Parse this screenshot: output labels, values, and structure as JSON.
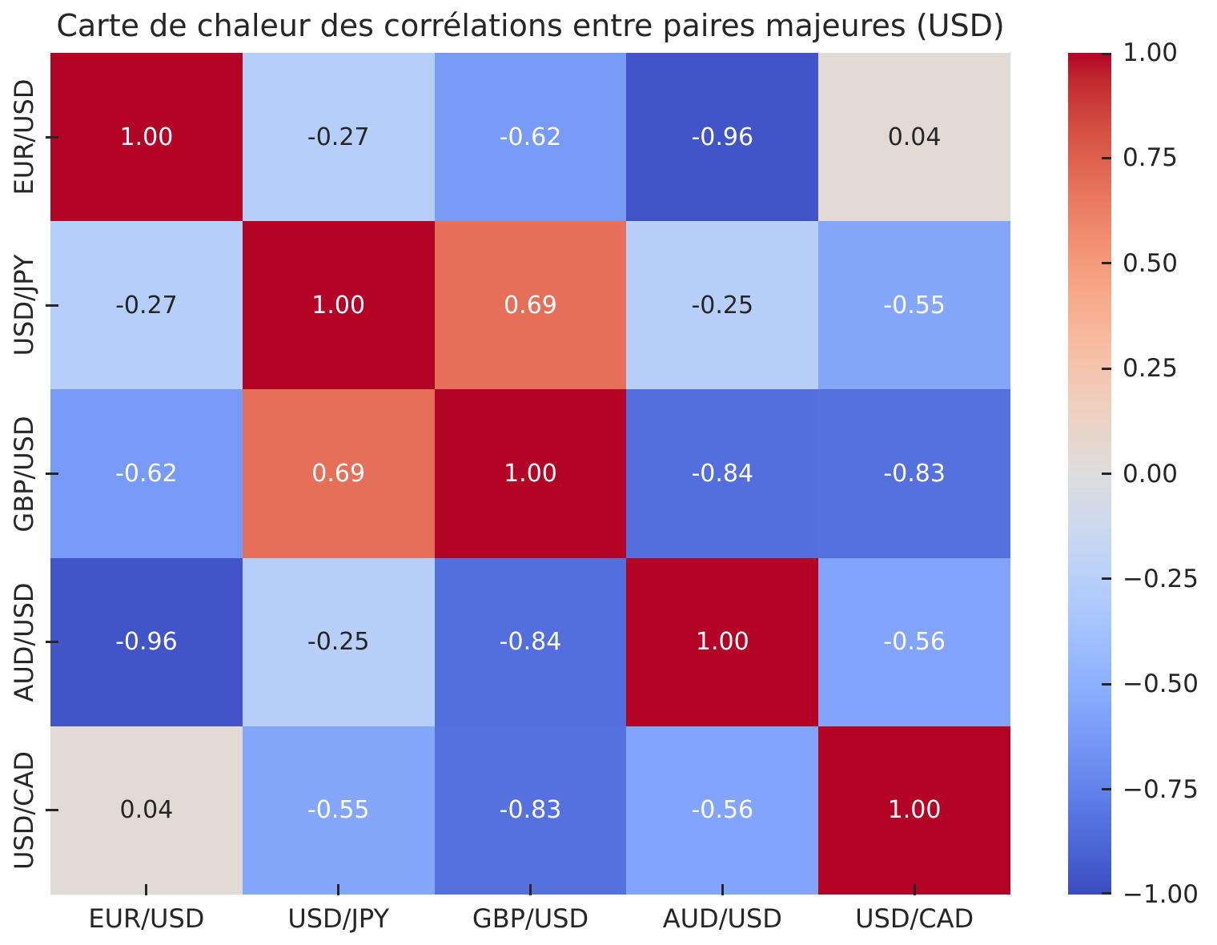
{
  "title": "Carte de chaleur des corrélations entre paires majeures (USD)",
  "chart_data": {
    "type": "heatmap",
    "x_categories": [
      "EUR/USD",
      "USD/JPY",
      "GBP/USD",
      "AUD/USD",
      "USD/CAD"
    ],
    "y_categories": [
      "EUR/USD",
      "USD/JPY",
      "GBP/USD",
      "AUD/USD",
      "USD/CAD"
    ],
    "matrix": [
      [
        1.0,
        -0.27,
        -0.62,
        -0.96,
        0.04
      ],
      [
        -0.27,
        1.0,
        0.69,
        -0.25,
        -0.55
      ],
      [
        -0.62,
        0.69,
        1.0,
        -0.84,
        -0.83
      ],
      [
        -0.96,
        -0.25,
        -0.84,
        1.0,
        -0.56
      ],
      [
        0.04,
        -0.55,
        -0.83,
        -0.56,
        1.0
      ]
    ],
    "annotation_decimals": 2,
    "colormap": "coolwarm",
    "vmin": -1.0,
    "vmax": 1.0,
    "colorbar_position": "right",
    "colorbar_tick_labels": [
      "1.00",
      "0.75",
      "0.50",
      "0.25",
      "0.00",
      "−0.25",
      "−0.50",
      "−0.75",
      "−1.00"
    ],
    "colorbar_tick_values": [
      1.0,
      0.75,
      0.5,
      0.25,
      0.0,
      -0.25,
      -0.5,
      -0.75,
      -1.0
    ],
    "grid": false,
    "legend": false
  },
  "colors": {
    "background": "#ffffff",
    "text": "#262626",
    "annotation_light": "#ffffff",
    "annotation_dark": "#262626",
    "tick_mark": "#262626",
    "cmap_max_red": "#b40426",
    "cmap_mid_gray": "#dddcdc",
    "cmap_min_blue": "#3b4cc0",
    "cmap_rgb_table": [
      [
        59,
        76,
        192
      ],
      [
        68,
        90,
        204
      ],
      [
        77,
        104,
        215
      ],
      [
        87,
        117,
        225
      ],
      [
        98,
        130,
        234
      ],
      [
        108,
        142,
        241
      ],
      [
        119,
        154,
        247
      ],
      [
        130,
        165,
        251
      ],
      [
        141,
        176,
        254
      ],
      [
        152,
        185,
        255
      ],
      [
        163,
        194,
        255
      ],
      [
        174,
        201,
        253
      ],
      [
        184,
        208,
        249
      ],
      [
        194,
        213,
        244
      ],
      [
        204,
        217,
        238
      ],
      [
        213,
        219,
        230
      ],
      [
        221,
        221,
        221
      ],
      [
        229,
        216,
        209
      ],
      [
        236,
        211,
        197
      ],
      [
        241,
        204,
        185
      ],
      [
        245,
        196,
        173
      ],
      [
        247,
        187,
        160
      ],
      [
        247,
        177,
        148
      ],
      [
        247,
        166,
        135
      ],
      [
        244,
        154,
        123
      ],
      [
        241,
        141,
        111
      ],
      [
        236,
        127,
        99
      ],
      [
        229,
        112,
        88
      ],
      [
        222,
        96,
        77
      ],
      [
        213,
        80,
        66
      ],
      [
        203,
        62,
        56
      ],
      [
        192,
        40,
        47
      ],
      [
        180,
        4,
        38
      ]
    ]
  }
}
